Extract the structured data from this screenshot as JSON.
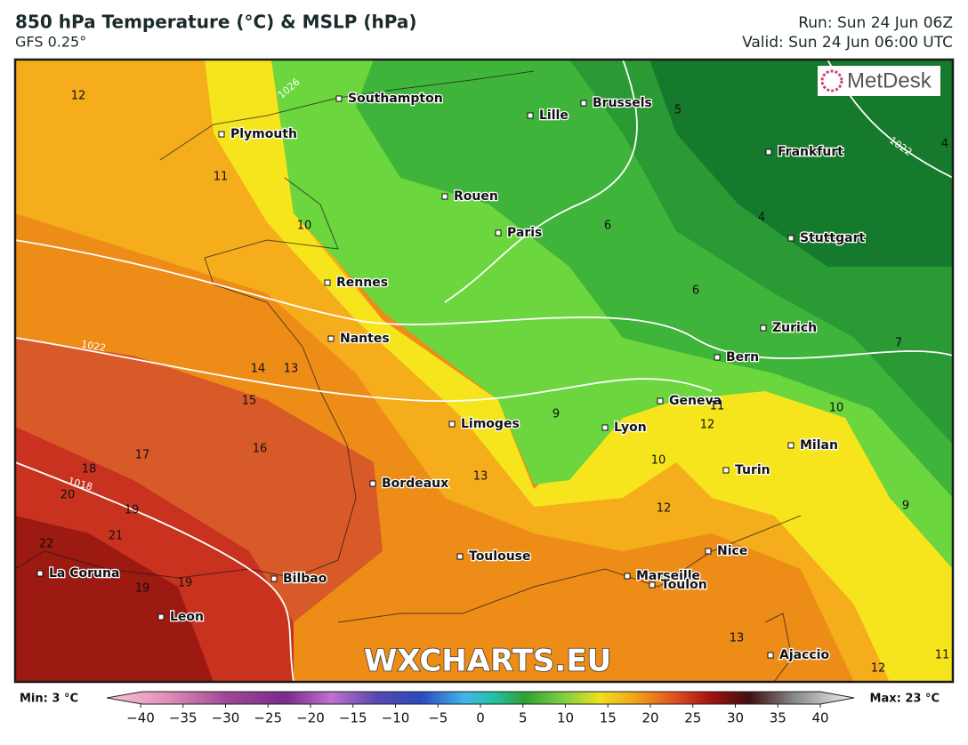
{
  "header": {
    "title": "850 hPa Temperature (°C) & MSLP (hPa)",
    "model": "GFS 0.25°",
    "run": "Run: Sun 24 Jun 06Z",
    "valid": "Valid: Sun 24 Jun 06:00 UTC"
  },
  "logo": "MetDesk",
  "watermark": "WXCHARTS.EU",
  "cities": [
    "Southampton",
    "Plymouth",
    "Lille",
    "Brussels",
    "Frankfurt",
    "Rouen",
    "Paris",
    "Stuttgart",
    "Rennes",
    "Nantes",
    "Zurich",
    "Bern",
    "Geneva",
    "Lyon",
    "Limoges",
    "Milan",
    "Turin",
    "Bordeaux",
    "Toulouse",
    "Nice",
    "Marseille",
    "Toulon",
    "La Coruna",
    "Bilbao",
    "Leon",
    "Ajaccio"
  ],
  "contour_labels": [
    "12",
    "11",
    "10",
    "14",
    "13",
    "15",
    "16",
    "17",
    "18",
    "20",
    "19",
    "21",
    "22",
    "19",
    "19",
    "13",
    "9",
    "12",
    "11",
    "10",
    "10",
    "12",
    "9",
    "13",
    "12",
    "11",
    "6",
    "6",
    "4",
    "5",
    "7",
    "4"
  ],
  "isobar_labels": [
    "1026",
    "1022",
    "1022",
    "1018"
  ],
  "colorbar": {
    "min_label": "Min: 3 °C",
    "max_label": "Max: 23 °C",
    "ticks": [
      {
        "value": -40,
        "label": "−40"
      },
      {
        "value": -35,
        "label": "−35"
      },
      {
        "value": -30,
        "label": "−30"
      },
      {
        "value": -25,
        "label": "−25"
      },
      {
        "value": -20,
        "label": "−20"
      },
      {
        "value": -15,
        "label": "−15"
      },
      {
        "value": -10,
        "label": "−10"
      },
      {
        "value": -5,
        "label": "−5"
      },
      0,
      5,
      10,
      15,
      20,
      25,
      30,
      35,
      40
    ]
  }
}
